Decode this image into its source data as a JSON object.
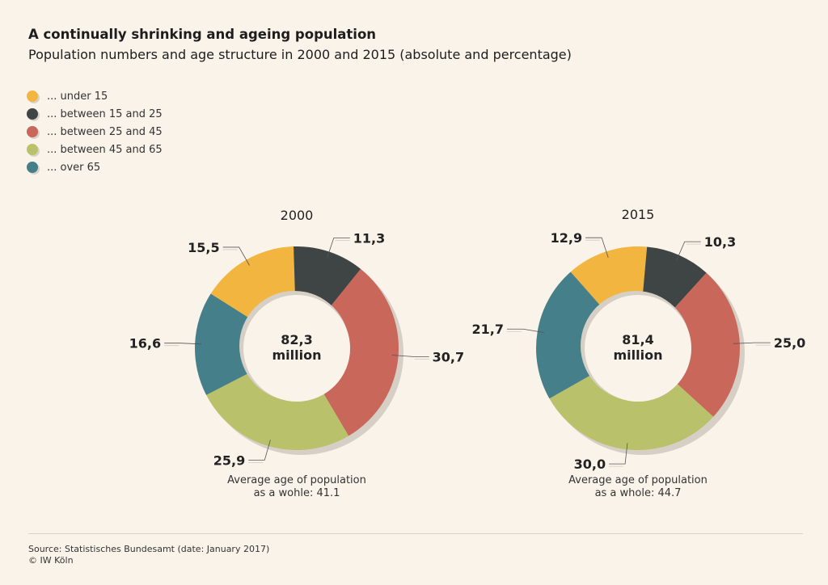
{
  "title": "A continually shrinking and ageing population",
  "subtitle": "Population numbers and age structure in 2000 and 2015 (absolute and percentage)",
  "legend": [
    {
      "label": "... under 15",
      "color": "#f2b53f"
    },
    {
      "label": "... between 15 and 25",
      "color": "#3f4444"
    },
    {
      "label": "... between 25 and 45",
      "color": "#c8675a"
    },
    {
      "label": "... between 45 and 65",
      "color": "#b9c26a"
    },
    {
      "label": "... over 65",
      "color": "#447f8a"
    }
  ],
  "chart_data": [
    {
      "type": "pie",
      "title": "2000",
      "categories": [
        "... under 15",
        "... between 15 and 25",
        "... between 25 and 45",
        "... between 45 and 65",
        "... over 65"
      ],
      "values": [
        15.5,
        11.3,
        30.7,
        25.9,
        16.6
      ],
      "value_labels": [
        "15,5",
        "11,3",
        "30,7",
        "25,9",
        "16,6"
      ],
      "center_value": "82,3",
      "center_unit": "million",
      "note_line1": "Average age of population",
      "note_line2": "as a wohle: 41.1"
    },
    {
      "type": "pie",
      "title": "2015",
      "categories": [
        "... under 15",
        "... between 15 and 25",
        "... between 25 and 45",
        "... between 45 and 65",
        "... over 65"
      ],
      "values": [
        12.9,
        10.3,
        25.0,
        30.0,
        21.7
      ],
      "value_labels": [
        "12,9",
        "10,3",
        "25,0",
        "30,0",
        "21,7"
      ],
      "center_value": "81,4",
      "center_unit": "million",
      "note_line1": "Average age of population",
      "note_line2": "as a whole: 44.7"
    }
  ],
  "source_line1": "Source: Statistisches Bundesamt (date: January 2017)",
  "source_line2": "© IW Köln"
}
